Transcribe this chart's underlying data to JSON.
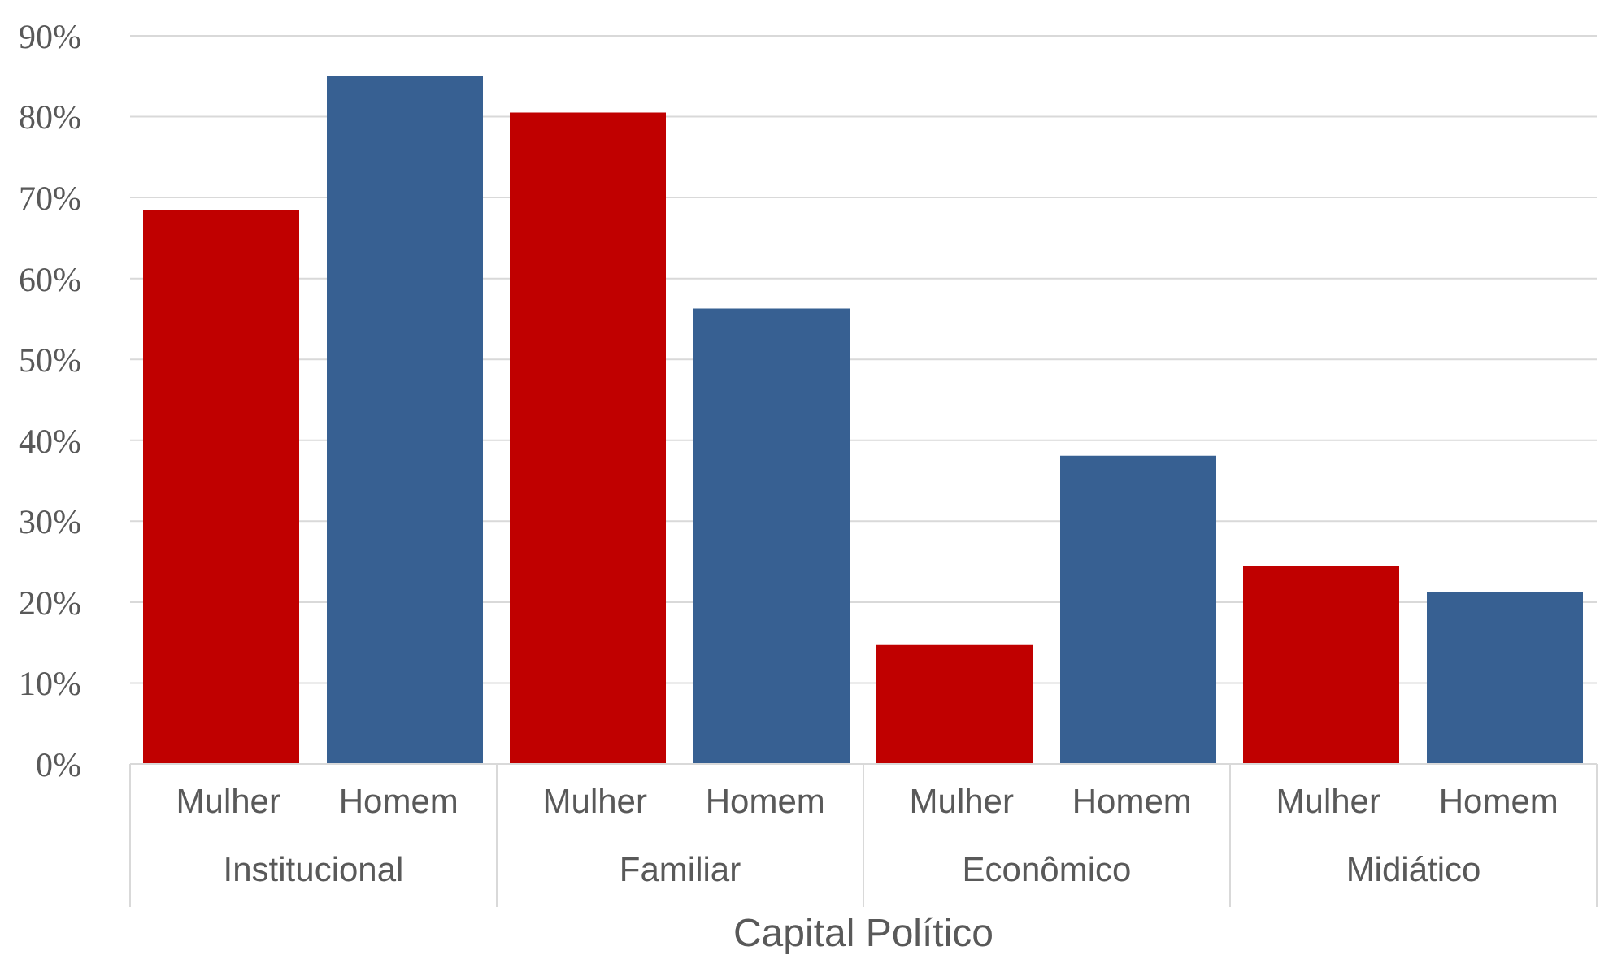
{
  "chart_data": {
    "type": "bar",
    "xlabel": "Capital Político",
    "categories": [
      "Institucional",
      "Familiar",
      "Econômico",
      "Midiático"
    ],
    "series": [
      {
        "name": "Mulher",
        "color": "#c00000",
        "values": [
          68.4,
          80.5,
          14.7,
          24.4
        ]
      },
      {
        "name": "Homem",
        "color": "#376092",
        "values": [
          85.0,
          56.3,
          38.1,
          21.2
        ]
      }
    ],
    "ylim": [
      0,
      90
    ],
    "yticks": [
      {
        "value": 0,
        "label": "0%"
      },
      {
        "value": 10,
        "label": "10%"
      },
      {
        "value": 20,
        "label": "20%"
      },
      {
        "value": 30,
        "label": "30%"
      },
      {
        "value": 40,
        "label": "40%"
      },
      {
        "value": 50,
        "label": "50%"
      },
      {
        "value": 60,
        "label": "60%"
      },
      {
        "value": 70,
        "label": "70%"
      },
      {
        "value": 80,
        "label": "80%"
      },
      {
        "value": 90,
        "label": "90%"
      }
    ],
    "grid": "y"
  }
}
